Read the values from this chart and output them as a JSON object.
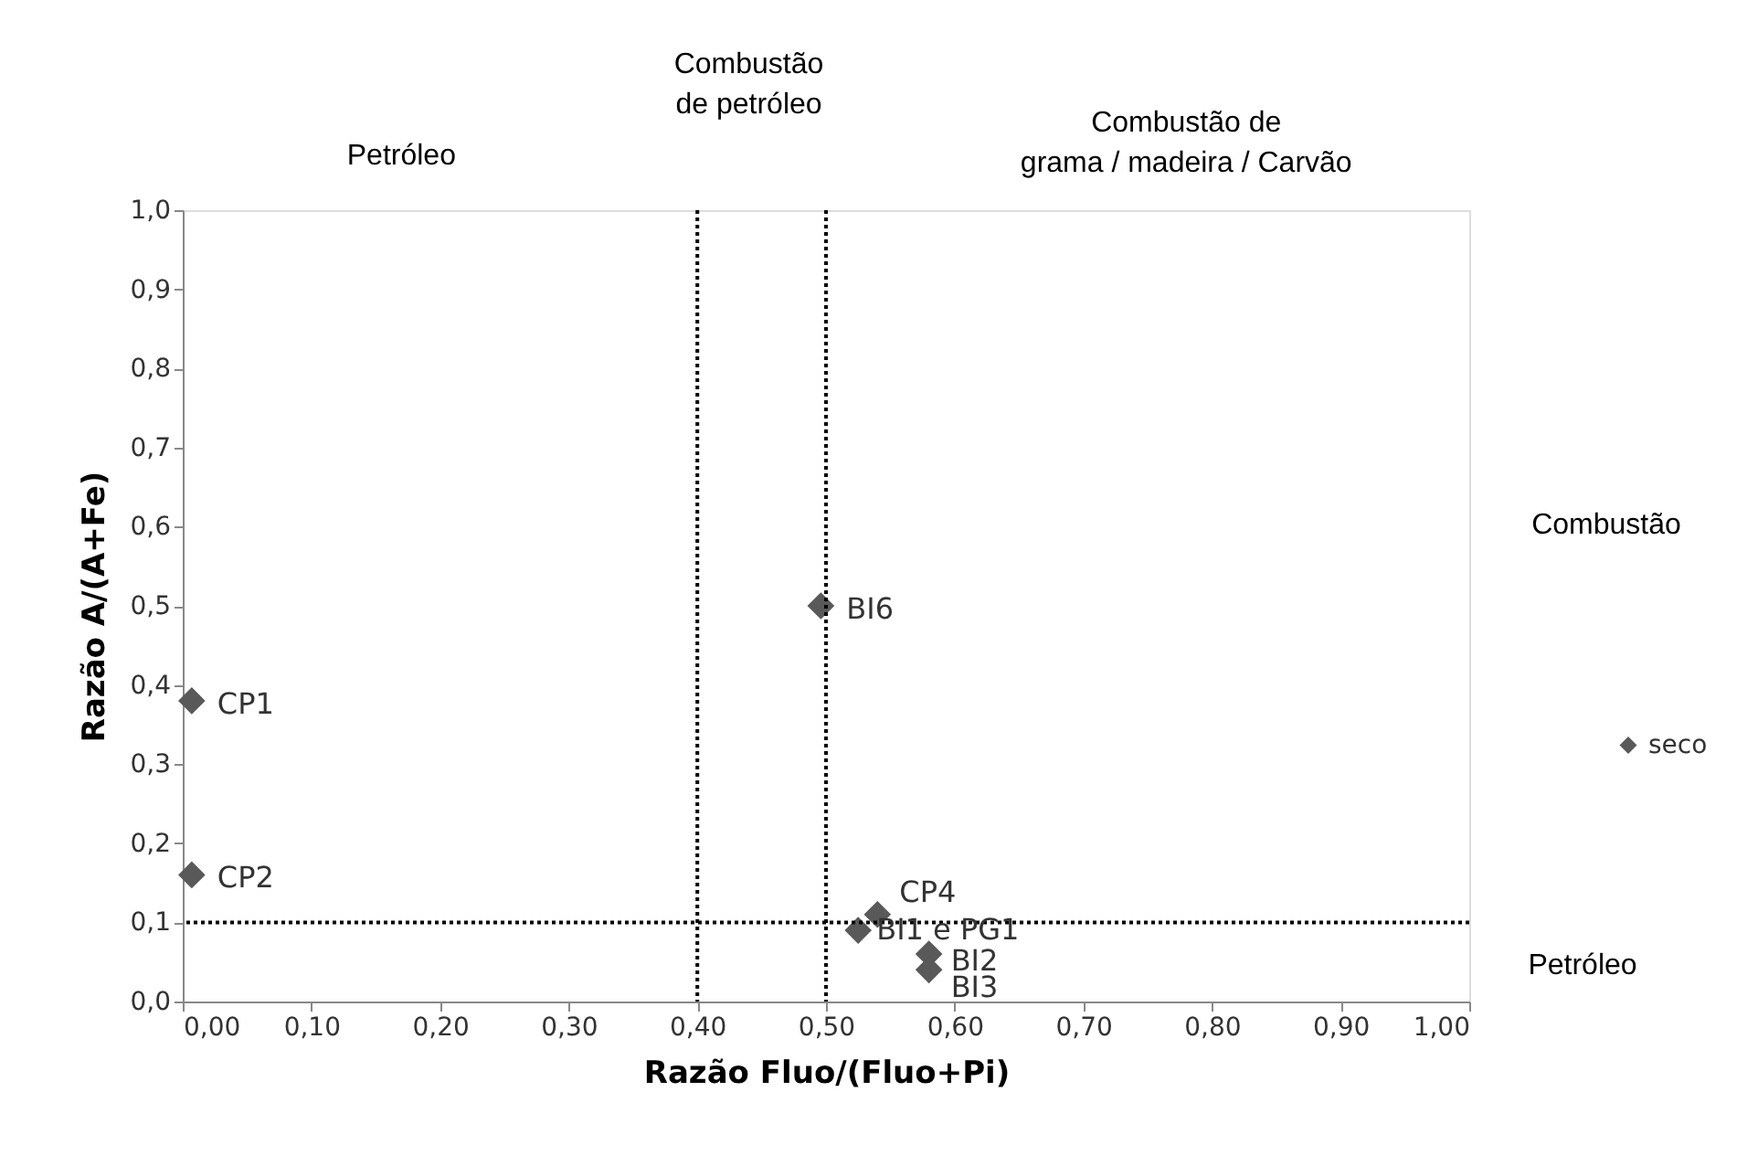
{
  "chart_data": {
    "type": "scatter",
    "xlabel": "Razão Fluo/(Fluo+Pi)",
    "ylabel": "Razão A/(A+Fe)",
    "x": [
      0.007,
      0.007,
      0.496,
      0.54,
      0.525,
      0.58,
      0.58
    ],
    "series": [
      {
        "name": "seco",
        "color": "#595959",
        "values": [
          0.38,
          0.16,
          0.5,
          0.11,
          0.09,
          0.06,
          0.04
        ]
      }
    ],
    "marker": "diamond",
    "legend": "right",
    "grid": false,
    "xlim": [
      0,
      1
    ],
    "ylim": [
      0,
      1
    ],
    "xticks": [
      {
        "value": 0,
        "label": "0,00"
      },
      {
        "value": 0.1,
        "label": "0,10"
      },
      {
        "value": 0.2,
        "label": "0,20"
      },
      {
        "value": 0.3,
        "label": "0,30"
      },
      {
        "value": 0.4,
        "label": "0,40"
      },
      {
        "value": 0.5,
        "label": "0,50"
      },
      {
        "value": 0.6,
        "label": "0,60"
      },
      {
        "value": 0.7,
        "label": "0,70"
      },
      {
        "value": 0.8,
        "label": "0,80"
      },
      {
        "value": 0.9,
        "label": "0,90"
      },
      {
        "value": 1,
        "label": "1,00"
      }
    ],
    "yticks": [
      {
        "value": 0,
        "label": "0,0"
      },
      {
        "value": 0.1,
        "label": "0,1"
      },
      {
        "value": 0.2,
        "label": "0,2"
      },
      {
        "value": 0.3,
        "label": "0,3"
      },
      {
        "value": 0.4,
        "label": "0,4"
      },
      {
        "value": 0.5,
        "label": "0,5"
      },
      {
        "value": 0.6,
        "label": "0,6"
      },
      {
        "value": 0.7,
        "label": "0,7"
      },
      {
        "value": 0.8,
        "label": "0,8"
      },
      {
        "value": 0.9,
        "label": "0,9"
      },
      {
        "value": 1,
        "label": "1,0"
      }
    ],
    "ref_lines": [
      {
        "axis": "x",
        "value": 0.4,
        "color": "#000000",
        "line_style": "dotted"
      },
      {
        "axis": "x",
        "value": 0.5,
        "color": "#000000",
        "line_style": "dotted"
      },
      {
        "axis": "y",
        "value": 0.1,
        "color": "#000000",
        "line_style": "dotted"
      }
    ],
    "annotations": [
      {
        "text": "CP1",
        "x": 0.007,
        "y": 0.38
      },
      {
        "text": "CP2",
        "x": 0.007,
        "y": 0.16
      },
      {
        "text": "BI6",
        "x": 0.496,
        "y": 0.5
      },
      {
        "text": "CP4",
        "x": 0.54,
        "y": 0.11
      },
      {
        "text": "BI1 e PG1",
        "x": 0.525,
        "y": 0.09
      },
      {
        "text": "BI2",
        "x": 0.58,
        "y": 0.06
      },
      {
        "text": "BI3",
        "x": 0.58,
        "y": 0.04
      },
      "Petróleo",
      "Combustão\nde petróleo",
      "Combustão de\ngrama / madeira / Carvão",
      "Combustão",
      "Petróleo"
    ]
  }
}
